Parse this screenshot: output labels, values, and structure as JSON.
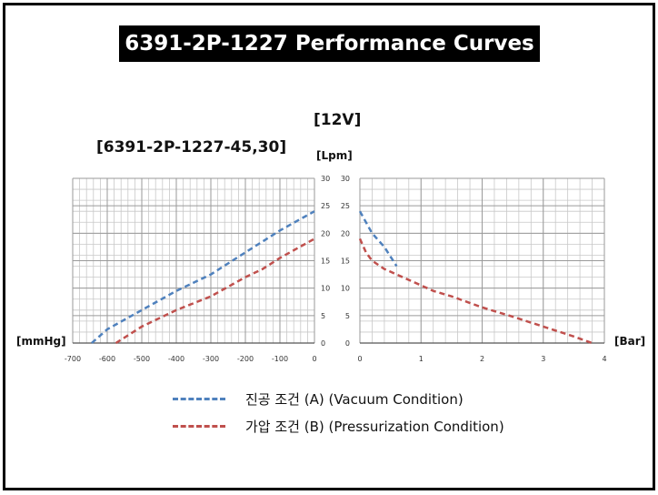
{
  "title": "6391-2P-1227  Performance Curves",
  "voltage_label": "[12V]",
  "model_label": "[6391-2P-1227-45,30]",
  "left_unit_label": "[mmHg]",
  "right_unit_label": "[Bar]",
  "y_unit_label": "[Lpm]",
  "colors": {
    "vacuum": "#4f81bd",
    "pressure": "#c0504d",
    "grid": "#c8c8c8"
  },
  "legend": {
    "vacuum": "진공 조건 (A) (Vacuum Condition)",
    "pressure": "가압 조건 (B) (Pressurization Condition)"
  },
  "chart_data": [
    {
      "type": "line",
      "xlabel": "[mmHg]",
      "ylabel": "[Lpm]",
      "xlim": [
        -700,
        0
      ],
      "ylim": [
        0,
        30
      ],
      "x_ticks": [
        "-700",
        "-600",
        "-500",
        "-400",
        "-300",
        "-200",
        "-100",
        "0"
      ],
      "y_ticks": [
        "0",
        "5",
        "10",
        "15",
        "20",
        "25",
        "30"
      ],
      "grid": true,
      "series": [
        {
          "name": "진공 조건 (A) (Vacuum Condition)",
          "color": "#4f81bd",
          "x": [
            -645,
            -600,
            -500,
            -400,
            -300,
            -200,
            -100,
            0
          ],
          "y": [
            0,
            2.5,
            6,
            9.5,
            12.5,
            16.5,
            20.5,
            24
          ]
        },
        {
          "name": "가압 조건 (B) (Pressurization Condition)",
          "color": "#c0504d",
          "x": [
            -575,
            -500,
            -400,
            -300,
            -200,
            -150,
            -100,
            0
          ],
          "y": [
            0,
            3,
            6,
            8.5,
            12,
            13.5,
            15.5,
            19
          ]
        }
      ]
    },
    {
      "type": "line",
      "xlabel": "[Bar]",
      "ylabel": "[Lpm]",
      "xlim": [
        0,
        4
      ],
      "ylim": [
        0,
        30
      ],
      "x_ticks": [
        "0",
        "1",
        "2",
        "3",
        "4"
      ],
      "y_ticks": [
        "0",
        "5",
        "10",
        "15",
        "20",
        "25",
        "30"
      ],
      "grid": true,
      "series": [
        {
          "name": "진공 조건 (A) (Vacuum Condition)",
          "color": "#4f81bd",
          "x": [
            0,
            0.1,
            0.2,
            0.4,
            0.6
          ],
          "y": [
            24,
            22,
            20,
            17.5,
            14
          ]
        },
        {
          "name": "가압 조건 (B) (Pressurization Condition)",
          "color": "#c0504d",
          "x": [
            0,
            0.1,
            0.2,
            0.4,
            0.6,
            0.8,
            1.0,
            1.2,
            1.5,
            2.0,
            2.5,
            3.0,
            3.5,
            3.8
          ],
          "y": [
            19,
            16.5,
            15,
            13.5,
            12.5,
            11.5,
            10.5,
            9.5,
            8.5,
            6.5,
            4.8,
            3,
            1.2,
            0
          ]
        }
      ]
    }
  ]
}
